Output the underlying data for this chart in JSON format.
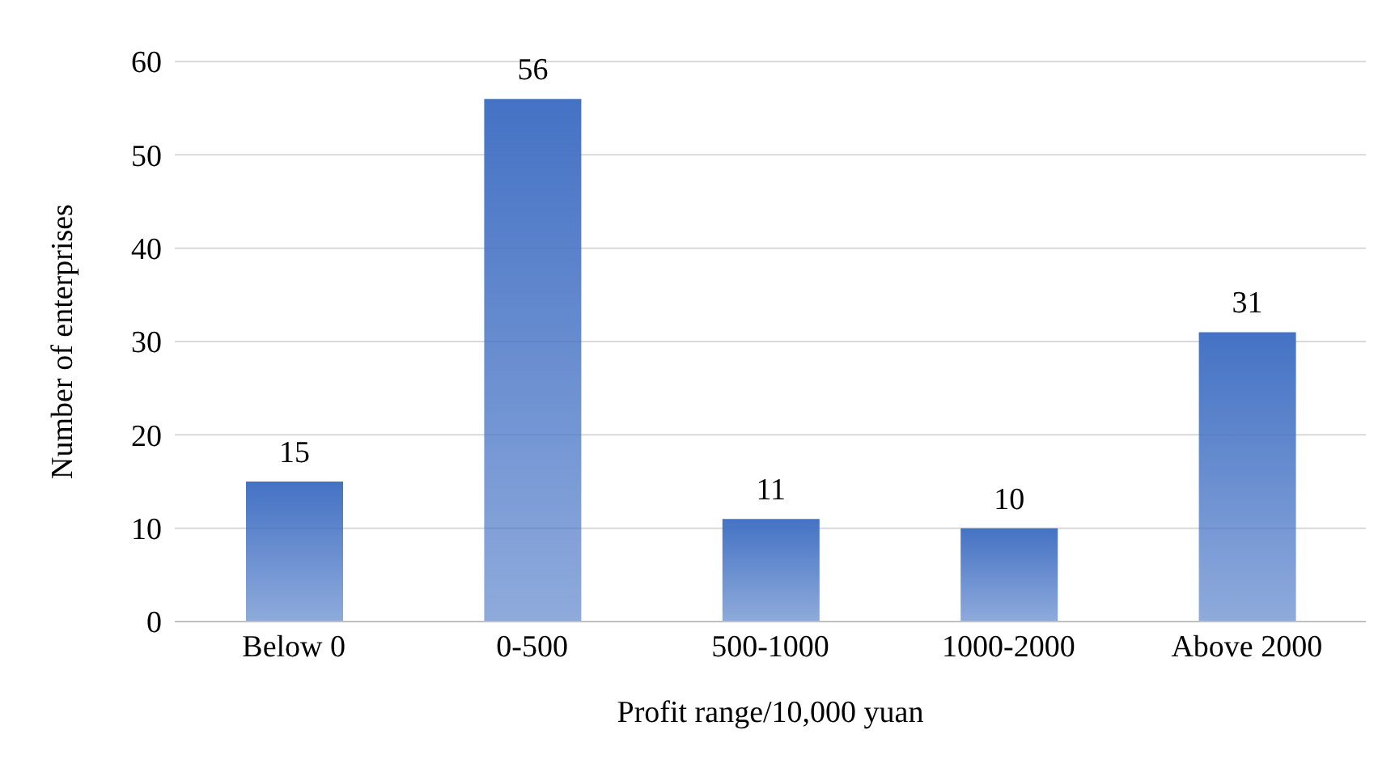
{
  "chart_data": {
    "type": "bar",
    "xlabel": "Profit range/10,000 yuan",
    "ylabel": "Number of enterprises",
    "categories": [
      "Below 0",
      "0-500",
      "500-1000",
      "1000-2000",
      "Above 2000"
    ],
    "values": [
      15,
      56,
      11,
      10,
      31
    ],
    "color": "#4472c4",
    "ylim": [
      0,
      60
    ],
    "yticks": [
      0,
      10,
      20,
      30,
      40,
      50,
      60
    ],
    "grid": "y",
    "data_labels": true
  }
}
